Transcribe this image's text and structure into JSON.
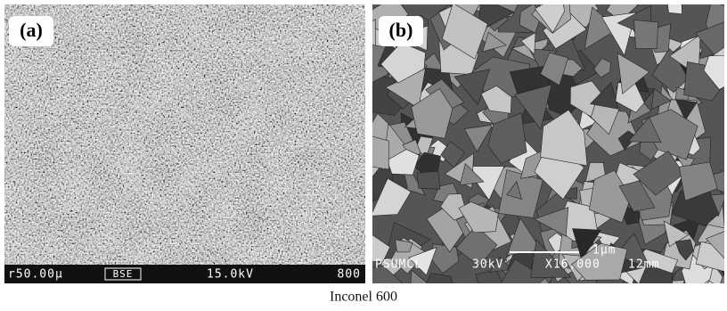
{
  "panels": [
    {
      "label": "(a)",
      "info": [
        "r50.00μ",
        "BSE",
        "15.0kV",
        "800"
      ]
    },
    {
      "label": "(b)",
      "info": [
        "PSUMCL",
        "30kV",
        "X16,000",
        "12mm"
      ],
      "scale_bar": "1μm"
    }
  ],
  "caption": "Inconel 600"
}
